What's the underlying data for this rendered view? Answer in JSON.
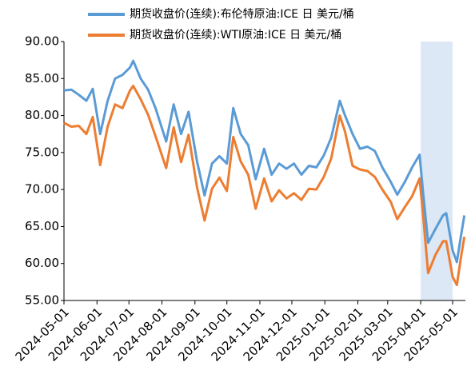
{
  "chart_data": {
    "type": "line",
    "x": [
      "2024-05-01",
      "2024-05-08",
      "2024-05-15",
      "2024-05-22",
      "2024-05-28",
      "2024-06-04",
      "2024-06-11",
      "2024-06-18",
      "2024-06-25",
      "2024-07-02",
      "2024-07-05",
      "2024-07-12",
      "2024-07-19",
      "2024-07-26",
      "2024-08-05",
      "2024-08-12",
      "2024-08-19",
      "2024-08-26",
      "2024-09-03",
      "2024-09-10",
      "2024-09-17",
      "2024-09-24",
      "2024-10-01",
      "2024-10-07",
      "2024-10-14",
      "2024-10-21",
      "2024-10-28",
      "2024-11-05",
      "2024-11-12",
      "2024-11-19",
      "2024-11-26",
      "2024-12-03",
      "2024-12-10",
      "2024-12-17",
      "2024-12-24",
      "2024-12-31",
      "2025-01-07",
      "2025-01-15",
      "2025-01-20",
      "2025-01-27",
      "2025-02-03",
      "2025-02-10",
      "2025-02-17",
      "2025-02-24",
      "2025-03-04",
      "2025-03-10",
      "2025-03-17",
      "2025-03-24",
      "2025-03-31",
      "2025-04-03",
      "2025-04-08",
      "2025-04-15",
      "2025-04-22",
      "2025-04-25",
      "2025-05-01",
      "2025-05-05",
      "2025-05-09",
      "2025-05-12"
    ],
    "series": [
      {
        "name": "期货收盘价(连续):布伦特原油:ICE 日 美元/桶",
        "color": "#5b9bd5",
        "values": [
          83.4,
          83.5,
          82.8,
          82.0,
          83.6,
          77.5,
          82.0,
          85.0,
          85.5,
          86.5,
          87.4,
          85.0,
          83.5,
          81.0,
          76.5,
          81.5,
          77.5,
          80.5,
          73.8,
          69.2,
          73.5,
          74.5,
          73.5,
          81.0,
          77.5,
          76.0,
          71.4,
          75.5,
          72.0,
          73.5,
          72.8,
          73.5,
          72.0,
          73.2,
          73.0,
          74.6,
          77.0,
          82.0,
          80.0,
          77.5,
          75.5,
          75.8,
          75.2,
          73.0,
          71.0,
          69.3,
          71.0,
          73.0,
          74.7,
          70.0,
          62.8,
          64.7,
          66.5,
          66.8,
          61.8,
          60.2,
          63.9,
          66.5
        ]
      },
      {
        "name": "期货收盘价(连续):WTI原油:ICE 日 美元/桶",
        "color": "#ed7d31",
        "values": [
          79.0,
          78.5,
          78.6,
          77.5,
          79.8,
          73.3,
          78.5,
          81.5,
          81.0,
          83.4,
          84.0,
          82.2,
          80.1,
          77.2,
          72.9,
          78.4,
          73.7,
          77.4,
          70.3,
          65.8,
          70.1,
          71.6,
          69.8,
          77.1,
          73.8,
          72.0,
          67.4,
          71.5,
          68.4,
          69.9,
          68.8,
          69.5,
          68.6,
          70.1,
          70.0,
          71.7,
          74.2,
          80.0,
          77.8,
          73.2,
          72.7,
          72.5,
          71.7,
          70.0,
          68.3,
          66.0,
          67.6,
          69.1,
          71.5,
          67.0,
          58.7,
          61.2,
          63.0,
          63.0,
          58.2,
          57.1,
          61.0,
          63.6
        ]
      }
    ],
    "xlim": [
      "2024-05-01",
      "2025-05-13"
    ],
    "xticks": [
      "2024-05-01",
      "2024-06-01",
      "2024-07-01",
      "2024-08-01",
      "2024-09-01",
      "2024-10-01",
      "2024-11-01",
      "2024-12-01",
      "2025-01-01",
      "2025-02-01",
      "2025-03-01",
      "2025-04-01",
      "2025-05-01"
    ],
    "ylim": [
      55,
      90
    ],
    "yticks": [
      {
        "value": 55,
        "label": "55.00"
      },
      {
        "value": 60,
        "label": "60.00"
      },
      {
        "value": 65,
        "label": "65.00"
      },
      {
        "value": 70,
        "label": "70.00"
      },
      {
        "value": 75,
        "label": "75.00"
      },
      {
        "value": 80,
        "label": "80.00"
      },
      {
        "value": 85,
        "label": "85.00"
      },
      {
        "value": 90,
        "label": "90.00"
      }
    ],
    "shaded_range": [
      "2025-04-01",
      "2025-05-01"
    ],
    "shade_color": "#dce8f5",
    "grid": false
  }
}
